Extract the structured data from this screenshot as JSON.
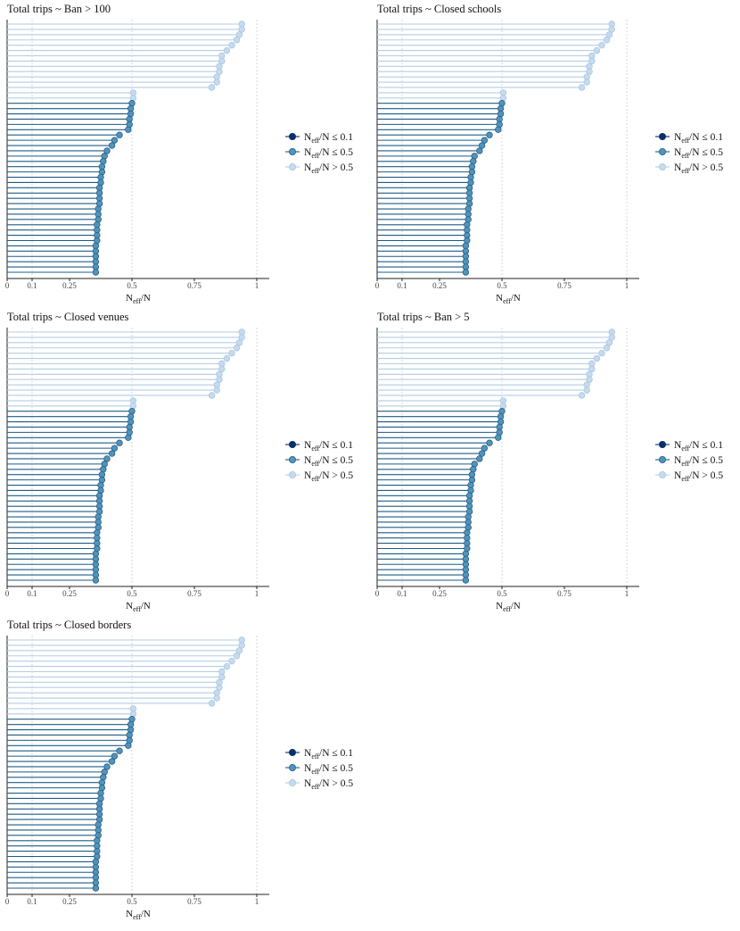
{
  "chart_data": [
    {
      "type": "lollipop",
      "title": "Total trips ~ Ban > 100",
      "values": [
        0.94,
        0.94,
        0.93,
        0.92,
        0.9,
        0.88,
        0.86,
        0.86,
        0.85,
        0.85,
        0.84,
        0.84,
        0.82,
        0.505,
        0.505,
        0.5,
        0.495,
        0.495,
        0.49,
        0.49,
        0.485,
        0.45,
        0.43,
        0.42,
        0.4,
        0.39,
        0.385,
        0.38,
        0.38,
        0.375,
        0.375,
        0.37,
        0.37,
        0.37,
        0.37,
        0.365,
        0.365,
        0.365,
        0.36,
        0.36,
        0.36,
        0.36,
        0.355,
        0.355,
        0.355,
        0.355,
        0.355,
        0.355
      ],
      "xlabel": [
        "N",
        "eff",
        "/N"
      ],
      "xlim": [
        0,
        1.05
      ],
      "xticks": [
        0,
        0.1,
        0.25,
        0.5,
        0.75,
        1
      ],
      "vlines": [
        0.1,
        0.5,
        1
      ],
      "legend": [
        {
          "label": [
            "N",
            "eff",
            "/N ≤ 0.1"
          ],
          "upper": 0.1,
          "color": "#08306b",
          "stroke": "#08306b",
          "line_color": "#08306b"
        },
        {
          "label": [
            "N",
            "eff",
            "/N ≤ 0.5"
          ],
          "upper": 0.5,
          "color": "#4f94bd",
          "stroke": "#2b5f84",
          "line_color": "#1f5b85"
        },
        {
          "label": [
            "N",
            "eff",
            "/N > 0.5"
          ],
          "upper": null,
          "color": "#c6dbef",
          "stroke": "#a9c6de",
          "line_color": "#b3cde3"
        }
      ]
    },
    {
      "type": "lollipop",
      "title": "Total trips ~ Closed schools",
      "values": [
        0.94,
        0.94,
        0.93,
        0.92,
        0.9,
        0.88,
        0.86,
        0.86,
        0.85,
        0.85,
        0.84,
        0.84,
        0.82,
        0.505,
        0.505,
        0.5,
        0.495,
        0.495,
        0.49,
        0.49,
        0.485,
        0.45,
        0.43,
        0.42,
        0.41,
        0.39,
        0.385,
        0.38,
        0.38,
        0.375,
        0.375,
        0.37,
        0.37,
        0.37,
        0.37,
        0.365,
        0.365,
        0.365,
        0.36,
        0.36,
        0.36,
        0.36,
        0.355,
        0.355,
        0.355,
        0.355,
        0.355,
        0.355
      ],
      "xlabel": [
        "N",
        "eff",
        "/N"
      ],
      "xlim": [
        0,
        1.05
      ],
      "xticks": [
        0,
        0.1,
        0.25,
        0.5,
        0.75,
        1
      ],
      "vlines": [
        0.1,
        0.5,
        1
      ],
      "legend": [
        {
          "label": [
            "N",
            "eff",
            "/N ≤ 0.1"
          ],
          "upper": 0.1,
          "color": "#08306b",
          "stroke": "#08306b",
          "line_color": "#08306b"
        },
        {
          "label": [
            "N",
            "eff",
            "/N ≤ 0.5"
          ],
          "upper": 0.5,
          "color": "#4f94bd",
          "stroke": "#2b5f84",
          "line_color": "#1f5b85"
        },
        {
          "label": [
            "N",
            "eff",
            "/N > 0.5"
          ],
          "upper": null,
          "color": "#c6dbef",
          "stroke": "#a9c6de",
          "line_color": "#b3cde3"
        }
      ]
    },
    {
      "type": "lollipop",
      "title": "Total trips ~ Closed venues",
      "values": [
        0.94,
        0.94,
        0.93,
        0.92,
        0.9,
        0.88,
        0.86,
        0.86,
        0.85,
        0.85,
        0.84,
        0.84,
        0.82,
        0.505,
        0.505,
        0.5,
        0.495,
        0.495,
        0.49,
        0.49,
        0.485,
        0.45,
        0.43,
        0.42,
        0.4,
        0.39,
        0.385,
        0.38,
        0.38,
        0.375,
        0.375,
        0.37,
        0.37,
        0.37,
        0.37,
        0.365,
        0.365,
        0.365,
        0.36,
        0.36,
        0.36,
        0.36,
        0.355,
        0.355,
        0.355,
        0.355,
        0.355,
        0.355
      ],
      "xlabel": [
        "N",
        "eff",
        "/N"
      ],
      "xlim": [
        0,
        1.05
      ],
      "xticks": [
        0,
        0.1,
        0.25,
        0.5,
        0.75,
        1
      ],
      "vlines": [
        0.1,
        0.5,
        1
      ],
      "legend": [
        {
          "label": [
            "N",
            "eff",
            "/N ≤ 0.1"
          ],
          "upper": 0.1,
          "color": "#08306b",
          "stroke": "#08306b",
          "line_color": "#08306b"
        },
        {
          "label": [
            "N",
            "eff",
            "/N ≤ 0.5"
          ],
          "upper": 0.5,
          "color": "#4f94bd",
          "stroke": "#2b5f84",
          "line_color": "#1f5b85"
        },
        {
          "label": [
            "N",
            "eff",
            "/N > 0.5"
          ],
          "upper": null,
          "color": "#c6dbef",
          "stroke": "#a9c6de",
          "line_color": "#b3cde3"
        }
      ]
    },
    {
      "type": "lollipop",
      "title": "Total trips ~ Ban > 5",
      "values": [
        0.94,
        0.94,
        0.93,
        0.92,
        0.9,
        0.88,
        0.86,
        0.86,
        0.85,
        0.85,
        0.84,
        0.84,
        0.82,
        0.505,
        0.505,
        0.5,
        0.495,
        0.495,
        0.49,
        0.49,
        0.485,
        0.45,
        0.43,
        0.42,
        0.41,
        0.39,
        0.385,
        0.38,
        0.38,
        0.375,
        0.375,
        0.37,
        0.37,
        0.37,
        0.37,
        0.365,
        0.365,
        0.365,
        0.36,
        0.36,
        0.36,
        0.36,
        0.355,
        0.355,
        0.355,
        0.355,
        0.355,
        0.355
      ],
      "xlabel": [
        "N",
        "eff",
        "/N"
      ],
      "xlim": [
        0,
        1.05
      ],
      "xticks": [
        0,
        0.1,
        0.25,
        0.5,
        0.75,
        1
      ],
      "vlines": [
        0.1,
        0.5,
        1
      ],
      "legend": [
        {
          "label": [
            "N",
            "eff",
            "/N ≤ 0.1"
          ],
          "upper": 0.1,
          "color": "#08306b",
          "stroke": "#08306b",
          "line_color": "#08306b"
        },
        {
          "label": [
            "N",
            "eff",
            "/N ≤ 0.5"
          ],
          "upper": 0.5,
          "color": "#4f94bd",
          "stroke": "#2b5f84",
          "line_color": "#1f5b85"
        },
        {
          "label": [
            "N",
            "eff",
            "/N > 0.5"
          ],
          "upper": null,
          "color": "#c6dbef",
          "stroke": "#a9c6de",
          "line_color": "#b3cde3"
        }
      ]
    },
    {
      "type": "lollipop",
      "title": "Total trips ~ Closed borders",
      "values": [
        0.94,
        0.94,
        0.93,
        0.92,
        0.9,
        0.88,
        0.86,
        0.86,
        0.85,
        0.85,
        0.84,
        0.84,
        0.82,
        0.505,
        0.505,
        0.5,
        0.495,
        0.495,
        0.49,
        0.49,
        0.485,
        0.45,
        0.43,
        0.42,
        0.4,
        0.39,
        0.385,
        0.38,
        0.38,
        0.375,
        0.375,
        0.37,
        0.37,
        0.37,
        0.37,
        0.365,
        0.365,
        0.365,
        0.36,
        0.36,
        0.36,
        0.36,
        0.355,
        0.355,
        0.355,
        0.355,
        0.355,
        0.355
      ],
      "xlabel": [
        "N",
        "eff",
        "/N"
      ],
      "xlim": [
        0,
        1.05
      ],
      "xticks": [
        0,
        0.1,
        0.25,
        0.5,
        0.75,
        1
      ],
      "vlines": [
        0.1,
        0.5,
        1
      ],
      "legend": [
        {
          "label": [
            "N",
            "eff",
            "/N ≤ 0.1"
          ],
          "upper": 0.1,
          "color": "#08306b",
          "stroke": "#08306b",
          "line_color": "#08306b"
        },
        {
          "label": [
            "N",
            "eff",
            "/N ≤ 0.5"
          ],
          "upper": 0.5,
          "color": "#4f94bd",
          "stroke": "#2b5f84",
          "line_color": "#1f5b85"
        },
        {
          "label": [
            "N",
            "eff",
            "/N > 0.5"
          ],
          "upper": null,
          "color": "#c6dbef",
          "stroke": "#a9c6de",
          "line_color": "#b3cde3"
        }
      ]
    }
  ]
}
